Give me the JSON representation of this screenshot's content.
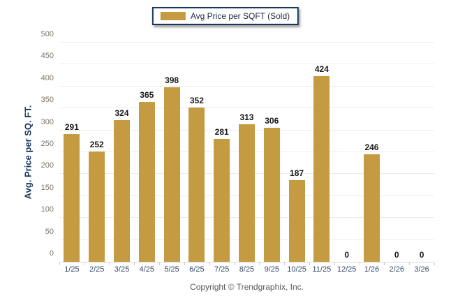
{
  "legend": {
    "label": "Avg Price per SQFT (Sold)"
  },
  "footer": {
    "copyright": "Copyright © Trendgraphix, Inc."
  },
  "colors": {
    "bar": "#C59B41",
    "navy": "#17375E"
  },
  "chart_data": {
    "type": "bar",
    "title": "",
    "series_name": "Avg Price per SQFT (Sold)",
    "categories": [
      "1/25",
      "2/25",
      "3/25",
      "4/25",
      "5/25",
      "6/25",
      "7/25",
      "8/25",
      "9/25",
      "10/25",
      "11/25",
      "12/25",
      "1/26",
      "2/26",
      "3/26"
    ],
    "values": [
      291,
      252,
      324,
      365,
      398,
      352,
      281,
      313,
      306,
      187,
      424,
      0,
      246,
      0,
      0
    ],
    "xlabel": "",
    "ylabel": "Avg. Price per SQ. FT.",
    "ylim": [
      0,
      500
    ],
    "ytick_step": 50,
    "grid": true,
    "data_labels": true,
    "legend_position": "top-center"
  }
}
